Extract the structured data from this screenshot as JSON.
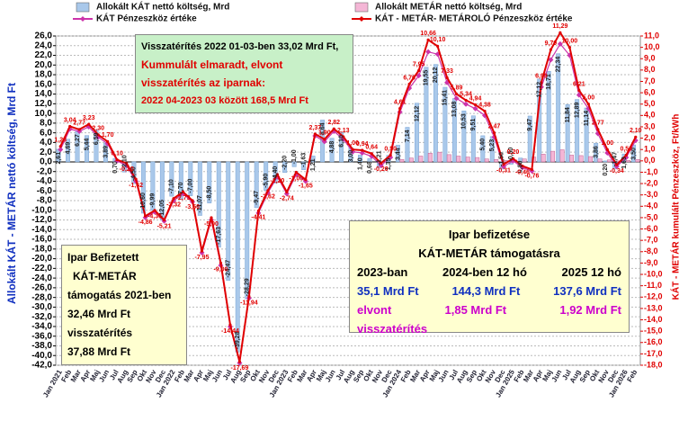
{
  "chart_data": {
    "type": "bar",
    "legend": [
      "KÁT Pénzeszköz értéke"
    ],
    "y_label": "Allokált KÁT - METÁR nettó költség, Mrd Ft",
    "y2_label": "KÁT - METÁR  kumulált Pénzeszköz, Ft/kWh",
    "grid": true,
    "ylim": [
      -42,
      26
    ],
    "y2lim": [
      -18,
      11
    ],
    "yticks": [
      {
        "value": 26,
        "label": "26,0"
      },
      {
        "value": 24,
        "label": "24,0"
      },
      {
        "value": 22,
        "label": "22,0"
      },
      {
        "value": 20,
        "label": "20,0"
      },
      {
        "value": 18,
        "label": "18,0"
      },
      {
        "value": 16,
        "label": "16,0"
      },
      {
        "value": 14,
        "label": "14,0"
      },
      {
        "value": 12,
        "label": "12,0"
      },
      {
        "value": 10,
        "label": "10,0"
      },
      {
        "value": 8,
        "label": "8,0"
      },
      {
        "value": 6,
        "label": "6,0"
      },
      {
        "value": 4,
        "label": "4,0"
      },
      {
        "value": 2,
        "label": "2,0"
      },
      {
        "value": 0,
        "label": "0,0"
      },
      {
        "value": -2,
        "label": "-2,0"
      },
      {
        "value": -4,
        "label": "-4,0"
      },
      {
        "value": -6,
        "label": "-6,0"
      },
      {
        "value": -8,
        "label": "-8,0"
      },
      {
        "value": -10,
        "label": "-10,0"
      },
      {
        "value": -12,
        "label": "-12,0"
      },
      {
        "value": -14,
        "label": "-14,0"
      },
      {
        "value": -16,
        "label": "-16,0"
      },
      {
        "value": -18,
        "label": "-18,0"
      },
      {
        "value": -20,
        "label": "-20,0"
      },
      {
        "value": -22,
        "label": "-22,0"
      },
      {
        "value": -24,
        "label": "-24,0"
      },
      {
        "value": -26,
        "label": "-26,0"
      },
      {
        "value": -28,
        "label": "-28,0"
      },
      {
        "value": -30,
        "label": "-30,0"
      },
      {
        "value": -32,
        "label": "-32,0"
      },
      {
        "value": -34,
        "label": "-34,0"
      },
      {
        "value": -36,
        "label": "-36,0"
      },
      {
        "value": -38,
        "label": "-38,0"
      },
      {
        "value": -40,
        "label": "-40,0"
      },
      {
        "value": -42,
        "label": "-42,0"
      }
    ],
    "y2ticks": [
      {
        "value": 11,
        "label": "11,0"
      },
      {
        "value": 10,
        "label": "10,0"
      },
      {
        "value": 9,
        "label": "9,0"
      },
      {
        "value": 8,
        "label": "8,0"
      },
      {
        "value": 7,
        "label": "7,0"
      },
      {
        "value": 6,
        "label": "6,0"
      },
      {
        "value": 5,
        "label": "5,0"
      },
      {
        "value": 4,
        "label": "4,0"
      },
      {
        "value": 3,
        "label": "3,0"
      },
      {
        "value": 2,
        "label": "2,0"
      },
      {
        "value": 1,
        "label": "1,0"
      },
      {
        "value": 0,
        "label": "0,0"
      },
      {
        "value": -1,
        "label": "-1,0"
      },
      {
        "value": -2,
        "label": "-2,0"
      },
      {
        "value": -3,
        "label": "-3,0"
      },
      {
        "value": -4,
        "label": "-4,0"
      },
      {
        "value": -5,
        "label": "-5,0"
      },
      {
        "value": -6,
        "label": "-6,0"
      },
      {
        "value": -7,
        "label": "-7,0"
      },
      {
        "value": -8,
        "label": "-8,0"
      },
      {
        "value": -9,
        "label": "-9,0"
      },
      {
        "value": -10,
        "label": "-10,0"
      },
      {
        "value": -11,
        "label": "-11,0"
      },
      {
        "value": -12,
        "label": "-12,0"
      },
      {
        "value": -13,
        "label": "-13,0"
      },
      {
        "value": -14,
        "label": "-14,0"
      },
      {
        "value": -15,
        "label": "-15,0"
      },
      {
        "value": -16,
        "label": "-16,0"
      },
      {
        "value": -17,
        "label": "-17,0"
      },
      {
        "value": -18,
        "label": "-18,0"
      }
    ],
    "categories": [
      "Jan 2021",
      "Feb",
      "Mar",
      "Apr",
      "Maj",
      "Jun",
      "Jul",
      "Aug",
      "Sep",
      "Okt",
      "Nov",
      "Dec",
      "Jan 2022",
      "Feb",
      "Mar",
      "Apr",
      "Maj",
      "Jun",
      "Jul",
      "Aug",
      "Sep",
      "Okt",
      "Nov",
      "Dec",
      "Jan 2023",
      "Feb",
      "Mar",
      "Apr",
      "Maj",
      "Jun",
      "Jul",
      "Aug",
      "Sep",
      "Okt",
      "Nov",
      "Dec",
      "Jan 2024",
      "Feb",
      "Mar",
      "Apr",
      "Maj",
      "Jun",
      "Jul",
      "Aug",
      "Sep",
      "Okt",
      "Nov",
      "Dec",
      "Jan 2025",
      "Feb",
      "Mar",
      "Apr",
      "Maj",
      "Jun",
      "Jul",
      "Aug",
      "Sep",
      "Okt",
      "Nov",
      "Dec",
      "Jan 2026",
      "Feb"
    ],
    "series": [
      {
        "name": "Allokált KÁT nettó költség, Mrd",
        "type": "bar",
        "color": "#a9c8ea",
        "values": [
          2.61,
          4.69,
          6.27,
          5.44,
          6.59,
          3.89,
          0.7,
          -2.1,
          -4.5,
          -10.6,
          -9.99,
          -12.05,
          -7.1,
          -7.7,
          -7,
          -11.07,
          -8.5,
          -17.63,
          -24.47,
          -39.28,
          -28.29,
          -9.47,
          -5.9,
          -4.4,
          -2.2,
          -1,
          -1.63,
          1.21,
          8.64,
          4.88,
          6.1,
          3,
          1.4,
          0.68,
          -1.21,
          1.35,
          3.44,
          7.14,
          12.12,
          19.55,
          20.12,
          15.41,
          13.08,
          10.53,
          9.51,
          5.4,
          5.23,
          -1.5,
          -0.5,
          0.8,
          9.47,
          17.12,
          18.71,
          22.34,
          11.84,
          12.89,
          11.14,
          3.86,
          0.2,
          -1.47,
          1.63,
          3.5
        ],
        "value_labels": [
          "2,61",
          "4,69",
          "6,27",
          "5,44",
          "6,59",
          "3,89",
          "0,70",
          "-2,10",
          "-4,50",
          "-10,60",
          "-9,99",
          "-12,05",
          "-7,10",
          "-7,70",
          "-7,00",
          "-11,07",
          "-8,50",
          "-17,63",
          "-24,47",
          "-39,28",
          "-28,29",
          "-9,47",
          "-5,90",
          "-4,40",
          "-2,20",
          "-1,00",
          "-1,63",
          "1,21",
          "8,64",
          "4,88",
          "6,10",
          "3,00",
          "1,40",
          "0,68",
          "-1,21",
          "1,35",
          "3,44",
          "7,14",
          "12,12",
          "19,55",
          "20,12",
          "15,41",
          "13,08",
          "10,53",
          "9,51",
          "5,40",
          "5,23",
          "-1,50",
          "-0,50",
          "0,80",
          "9,47",
          "17,12",
          "18,71",
          "22,34",
          "11,84",
          "12,89",
          "11,14",
          "3,86",
          "0,20",
          "-1,47",
          "1,63",
          "3,50"
        ]
      },
      {
        "name": "Allokált METÁR nettó költség, Mrd",
        "type": "bar",
        "color": "#f4b6d6",
        "values": [
          null,
          null,
          null,
          null,
          null,
          null,
          null,
          null,
          null,
          null,
          null,
          null,
          null,
          null,
          null,
          null,
          null,
          null,
          null,
          null,
          null,
          null,
          null,
          null,
          null,
          null,
          null,
          null,
          null,
          null,
          null,
          null,
          null,
          null,
          null,
          null,
          0.5,
          0.8,
          1.2,
          1.8,
          2,
          1.5,
          1.2,
          1,
          0.9,
          0.6,
          0.5,
          0.3,
          0.4,
          0.6,
          1,
          1.6,
          2.2,
          2.5,
          1.4,
          1.3,
          1.1,
          0.6,
          0.4,
          0.2,
          0.3,
          0.5
        ]
      },
      {
        "name": "KÁT Pénzeszköz értéke",
        "type": "line",
        "axis": "y2",
        "color": "#cc33aa",
        "values": [
          1,
          2.8,
          2.6,
          3,
          2.1,
          1.5,
          0,
          -0.4,
          -1.8,
          -5,
          -4.5,
          -5.3,
          -3.5,
          -2.9,
          -3.6,
          -8.1,
          -5.2,
          -9.2,
          -14.6,
          -17.8,
          -12.1,
          -4.6,
          -2.8,
          -1.4,
          -2.9,
          -1.2,
          -1.8,
          2.2,
          1.7,
          2.6,
          1.9,
          0.8,
          0.7,
          0.4,
          -0.4,
          0.3,
          4.3,
          6.4,
          7.5,
          9.6,
          9.4,
          6.9,
          5.5,
          5,
          4.6,
          4,
          2.1,
          -0.5,
          0,
          -0.6,
          -0.9,
          6.5,
          8.9,
          10.3,
          9.3,
          5.8,
          4.6,
          2.4,
          0.7,
          -0.5,
          0.3,
          1.8
        ]
      },
      {
        "name": "KÁT - METÁR- METÁROLÓ Pénzeszköz értéke",
        "type": "line",
        "axis": "y2",
        "color": "#e00000",
        "values": [
          1.28,
          3.04,
          2.77,
          3.23,
          2.3,
          1.7,
          0.1,
          -0.2,
          -1.62,
          -4.86,
          -4.36,
          -5.21,
          -3.32,
          -2.73,
          -3.5,
          -7.95,
          -5,
          -9,
          -14.44,
          -17.69,
          -11.94,
          -4.41,
          -2.62,
          -1.2,
          -2.74,
          -1,
          -1.65,
          2.37,
          1.9,
          2.82,
          2.13,
          1,
          0.94,
          0.64,
          -0.2,
          0.5,
          4.61,
          6.76,
          7.95,
          10.66,
          10.1,
          7.33,
          5.89,
          5.34,
          4.94,
          4.38,
          2.47,
          -0.31,
          0.2,
          -0.46,
          -0.76,
          6.9,
          9.79,
          11.29,
          10,
          6.21,
          5,
          2.77,
          1,
          -0.34,
          0.5,
          2.1
        ],
        "value_labels": [
          "1,28",
          "3,04",
          "2,77",
          "3,23",
          "2,30",
          "1,70",
          "0,10",
          "-0,20",
          "-1,62",
          "-4,86",
          "-4,36",
          "-5,21",
          "-3,32",
          "-2,73",
          "-3,50",
          "-7,95",
          "-5,00",
          "-9,00",
          "-14,44",
          "-17,69",
          "-11,94",
          "-4,41",
          "-2,62",
          "-1,20",
          "-2,74",
          "-1,00",
          "-1,65",
          "2,37",
          "1,90",
          "2,82",
          "2,13",
          "1,00",
          "0,94",
          "0,64",
          "-0,20",
          "0,50",
          "4,61",
          "6,76",
          "7,95",
          "10,66",
          "10,10",
          "7,33",
          "5,89",
          "5,34",
          "4,94",
          "4,38",
          "2,47",
          "-0,31",
          "0,20",
          "-0,46",
          "-0,76",
          "6,90",
          "9,79",
          "11,29",
          "10,00",
          "6,21",
          "5,00",
          "2,77",
          "1,00",
          "-0,34",
          "0,50",
          "2,10"
        ]
      }
    ],
    "annotations": {
      "green_box": [
        "Visszatérítés 2022 01-03-ben 33,02 Mrd Ft,",
        "Kummulált elmaradt, elvont",
        "visszatérítés az iparnak:",
        "2022 04-2023 03 között 168,5 Mrd Ft"
      ],
      "left_box": [
        "Ipar Befizetett",
        "KÁT-METÁR",
        "támogatás 2021-ben",
        "32,46 Mrd Ft",
        "visszatérítés",
        "37,88 Mrd Ft"
      ],
      "right_box": {
        "title": [
          "Ipar  befizetése",
          "KÁT-METÁR támogatásra"
        ],
        "columns": [
          "2023-ban",
          "2024-ben 12 hó",
          "2025 12 hó"
        ],
        "paid": [
          "35,1 Mrd Ft",
          "144,3 Mrd Ft",
          "137,6 Mrd Ft"
        ],
        "withheld": [
          "elvont",
          "1,85 Mrd Ft",
          "1,92 Mrd Ft"
        ],
        "withheld_note": "visszatérítés"
      }
    }
  }
}
